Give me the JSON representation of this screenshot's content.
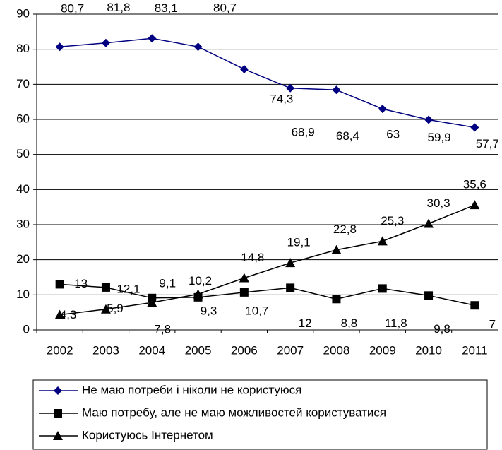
{
  "chart_data": {
    "type": "line",
    "categories": [
      "2002",
      "2003",
      "2004",
      "2005",
      "2006",
      "2007",
      "2008",
      "2009",
      "2010",
      "2011"
    ],
    "series": [
      {
        "name": "Не маю потреби і ніколи не користуюся",
        "color": "#000080",
        "marker": "diamond",
        "values": [
          80.7,
          81.8,
          83.1,
          80.7,
          74.3,
          68.9,
          68.4,
          63,
          59.9,
          57.7
        ],
        "value_labels": [
          "80,7",
          "81,8",
          "83,1",
          "80,7",
          "74,3",
          "68,9",
          "68,4",
          "63",
          "59,9",
          "57,7"
        ]
      },
      {
        "name": "Маю потребу, але не маю можливостей користуватися",
        "color": "#000000",
        "marker": "square",
        "values": [
          13,
          12.1,
          9.1,
          9.3,
          10.7,
          12,
          8.8,
          11.8,
          9.8,
          7
        ],
        "value_labels": [
          "13",
          "12,1",
          "9,1",
          "9,3",
          "10,7",
          "12",
          "8,8",
          "11,8",
          "9,8",
          "7"
        ]
      },
      {
        "name": "Користуюсь Інтернетом",
        "color": "#000000",
        "marker": "triangle",
        "values": [
          4.3,
          5.9,
          7.8,
          10.2,
          14.8,
          19.1,
          22.8,
          25.3,
          30.3,
          35.6
        ],
        "value_labels": [
          "4,3",
          "5,9",
          "7,8",
          "10,2",
          "14,8",
          "19,1",
          "22,8",
          "25,3",
          "30,3",
          "35,6"
        ]
      }
    ],
    "ylim": [
      0,
      90
    ],
    "yticks": [
      0,
      10,
      20,
      30,
      40,
      50,
      60,
      70,
      80,
      90
    ],
    "grid": true,
    "legend": "bottom"
  }
}
